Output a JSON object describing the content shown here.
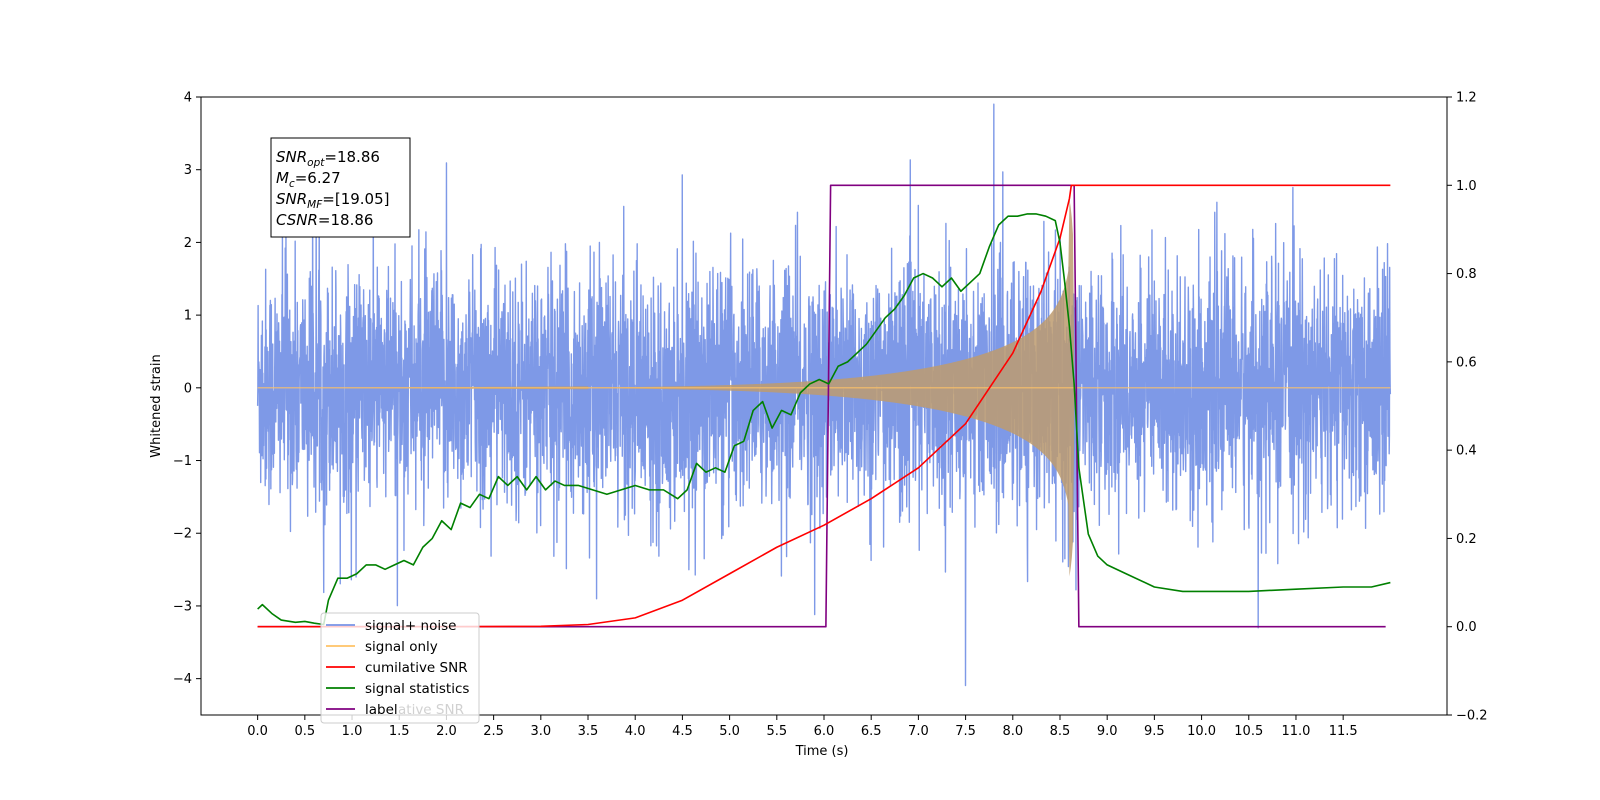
{
  "chart_data": {
    "type": "line",
    "xlabel": "Time (s)",
    "ylabel_left": "Whitened strain",
    "ylabel_right": "",
    "xlim": [
      -0.6,
      12.6
    ],
    "ylim_left": [
      -4.5,
      4.0
    ],
    "ylim_right": [
      -0.2,
      1.2
    ],
    "x_ticks": [
      0.0,
      0.5,
      1.0,
      1.5,
      2.0,
      2.5,
      3.0,
      3.5,
      4.0,
      4.5,
      5.0,
      5.5,
      6.0,
      6.5,
      7.0,
      7.5,
      8.0,
      8.5,
      9.0,
      9.5,
      10.0,
      10.5,
      11.0,
      11.5
    ],
    "x_tick_labels": [
      "0.0",
      "0.5",
      "1.0",
      "1.5",
      "2.0",
      "2.5",
      "3.0",
      "3.5",
      "4.0",
      "4.5",
      "5.0",
      "5.5",
      "6.0",
      "6.5",
      "7.0",
      "7.5",
      "8.0",
      "8.5",
      "9.0",
      "9.5",
      "10.0",
      "10.5",
      "11.0",
      "11.5"
    ],
    "y_left_ticks": [
      -4,
      -3,
      -2,
      -1,
      0,
      1,
      2,
      3,
      4
    ],
    "y_left_tick_labels": [
      "−4",
      "−3",
      "−2",
      "−1",
      "0",
      "1",
      "2",
      "3",
      "4"
    ],
    "y_right_ticks": [
      -0.2,
      0.0,
      0.2,
      0.4,
      0.6,
      0.8,
      1.0,
      1.2
    ],
    "y_right_tick_labels": [
      "−0.2",
      "0.0",
      "0.2",
      "0.4",
      "0.6",
      "0.8",
      "1.0",
      "1.2"
    ],
    "grid": false,
    "legend_position": "lower-left",
    "legend": [
      {
        "label": "signal+ noise",
        "color": "#7793e6"
      },
      {
        "label": "signal only",
        "color": "#ffc266"
      },
      {
        "label": "cumilative SNR",
        "color": "#ff0000"
      },
      {
        "label": "signal statistics",
        "color": "#008000"
      },
      {
        "label": "label",
        "color": "#800080"
      }
    ],
    "legend_overlap_text": "ative SNR",
    "annotation": {
      "lines": [
        {
          "base": "SNR",
          "sub": "opt",
          "value": "=18.86"
        },
        {
          "base": "M",
          "sub": "c",
          "value": "=6.27"
        },
        {
          "base": "SNR",
          "sub": "MF",
          "value": "=[19.05]"
        },
        {
          "base": "CSNR",
          "sub": "",
          "value": "=18.86"
        }
      ]
    },
    "series": [
      {
        "name": "signal+ noise",
        "axis": "left",
        "color": "#7793e6",
        "description_x_range": [
          0.0,
          12.0
        ],
        "envelope_points": [
          {
            "x": 0.3,
            "y": 2.15
          },
          {
            "x": 0.7,
            "y": -2.8
          },
          {
            "x": 2.0,
            "y": 3.1
          },
          {
            "x": 5.9,
            "y": -3.35
          },
          {
            "x": 7.5,
            "y": -4.1
          },
          {
            "x": 7.8,
            "y": 3.6
          },
          {
            "x": 10.6,
            "y": -3.3
          }
        ],
        "typical_amplitude": 1.5
      },
      {
        "name": "signal only",
        "axis": "left",
        "color": "#ffc266",
        "chirp": {
          "t_start": 0.0,
          "t_merge": 8.65,
          "amplitude_at_merge": 2.6,
          "amplitude_at_4s": 0.03
        }
      },
      {
        "name": "cumilative SNR",
        "axis": "right",
        "color": "#ff0000",
        "x": [
          0.0,
          2.0,
          3.0,
          3.5,
          4.0,
          4.5,
          5.0,
          5.5,
          6.0,
          6.5,
          7.0,
          7.5,
          8.0,
          8.3,
          8.5,
          8.6,
          8.62,
          12.0
        ],
        "values": [
          0.0,
          0.0,
          0.001,
          0.005,
          0.02,
          0.06,
          0.12,
          0.18,
          0.23,
          0.29,
          0.36,
          0.46,
          0.62,
          0.76,
          0.88,
          0.97,
          1.0,
          1.0
        ]
      },
      {
        "name": "signal statistics",
        "axis": "right",
        "color": "#008000",
        "x": [
          0.0,
          0.05,
          0.15,
          0.25,
          0.4,
          0.5,
          0.6,
          0.7,
          0.75,
          0.85,
          0.95,
          1.05,
          1.15,
          1.25,
          1.35,
          1.45,
          1.55,
          1.65,
          1.75,
          1.85,
          1.95,
          2.05,
          2.15,
          2.25,
          2.35,
          2.45,
          2.55,
          2.65,
          2.75,
          2.85,
          2.95,
          3.05,
          3.15,
          3.25,
          3.4,
          3.55,
          3.7,
          3.85,
          4.0,
          4.15,
          4.3,
          4.45,
          4.55,
          4.65,
          4.75,
          4.85,
          4.95,
          5.05,
          5.15,
          5.25,
          5.35,
          5.45,
          5.55,
          5.65,
          5.75,
          5.85,
          5.95,
          6.05,
          6.15,
          6.25,
          6.35,
          6.45,
          6.55,
          6.65,
          6.75,
          6.85,
          6.95,
          7.05,
          7.15,
          7.25,
          7.35,
          7.45,
          7.55,
          7.65,
          7.75,
          7.85,
          7.95,
          8.05,
          8.15,
          8.25,
          8.35,
          8.45,
          8.5,
          8.55,
          8.6,
          8.65,
          8.7,
          8.8,
          8.9,
          9.0,
          9.2,
          9.5,
          9.8,
          10.0,
          10.5,
          11.0,
          11.5,
          11.8,
          12.0
        ],
        "values": [
          0.04,
          0.05,
          0.03,
          0.015,
          0.01,
          0.012,
          0.008,
          0.005,
          0.06,
          0.11,
          0.11,
          0.12,
          0.14,
          0.14,
          0.13,
          0.14,
          0.15,
          0.14,
          0.18,
          0.2,
          0.24,
          0.22,
          0.28,
          0.27,
          0.3,
          0.29,
          0.34,
          0.32,
          0.34,
          0.31,
          0.34,
          0.31,
          0.33,
          0.32,
          0.32,
          0.31,
          0.3,
          0.31,
          0.32,
          0.31,
          0.31,
          0.29,
          0.31,
          0.37,
          0.35,
          0.36,
          0.35,
          0.41,
          0.42,
          0.49,
          0.51,
          0.45,
          0.49,
          0.48,
          0.53,
          0.55,
          0.56,
          0.55,
          0.59,
          0.6,
          0.62,
          0.64,
          0.67,
          0.7,
          0.72,
          0.75,
          0.79,
          0.8,
          0.79,
          0.77,
          0.79,
          0.76,
          0.78,
          0.8,
          0.86,
          0.91,
          0.93,
          0.93,
          0.935,
          0.935,
          0.93,
          0.92,
          0.87,
          0.78,
          0.68,
          0.55,
          0.36,
          0.21,
          0.16,
          0.14,
          0.12,
          0.09,
          0.08,
          0.08,
          0.08,
          0.085,
          0.09,
          0.09,
          0.1
        ]
      },
      {
        "name": "label",
        "axis": "right",
        "color": "#800080",
        "x": [
          0.0,
          6.02,
          6.07,
          8.65,
          8.7,
          11.95
        ],
        "values": [
          0.0,
          0.0,
          1.0,
          1.0,
          0.0,
          0.0
        ]
      }
    ]
  }
}
